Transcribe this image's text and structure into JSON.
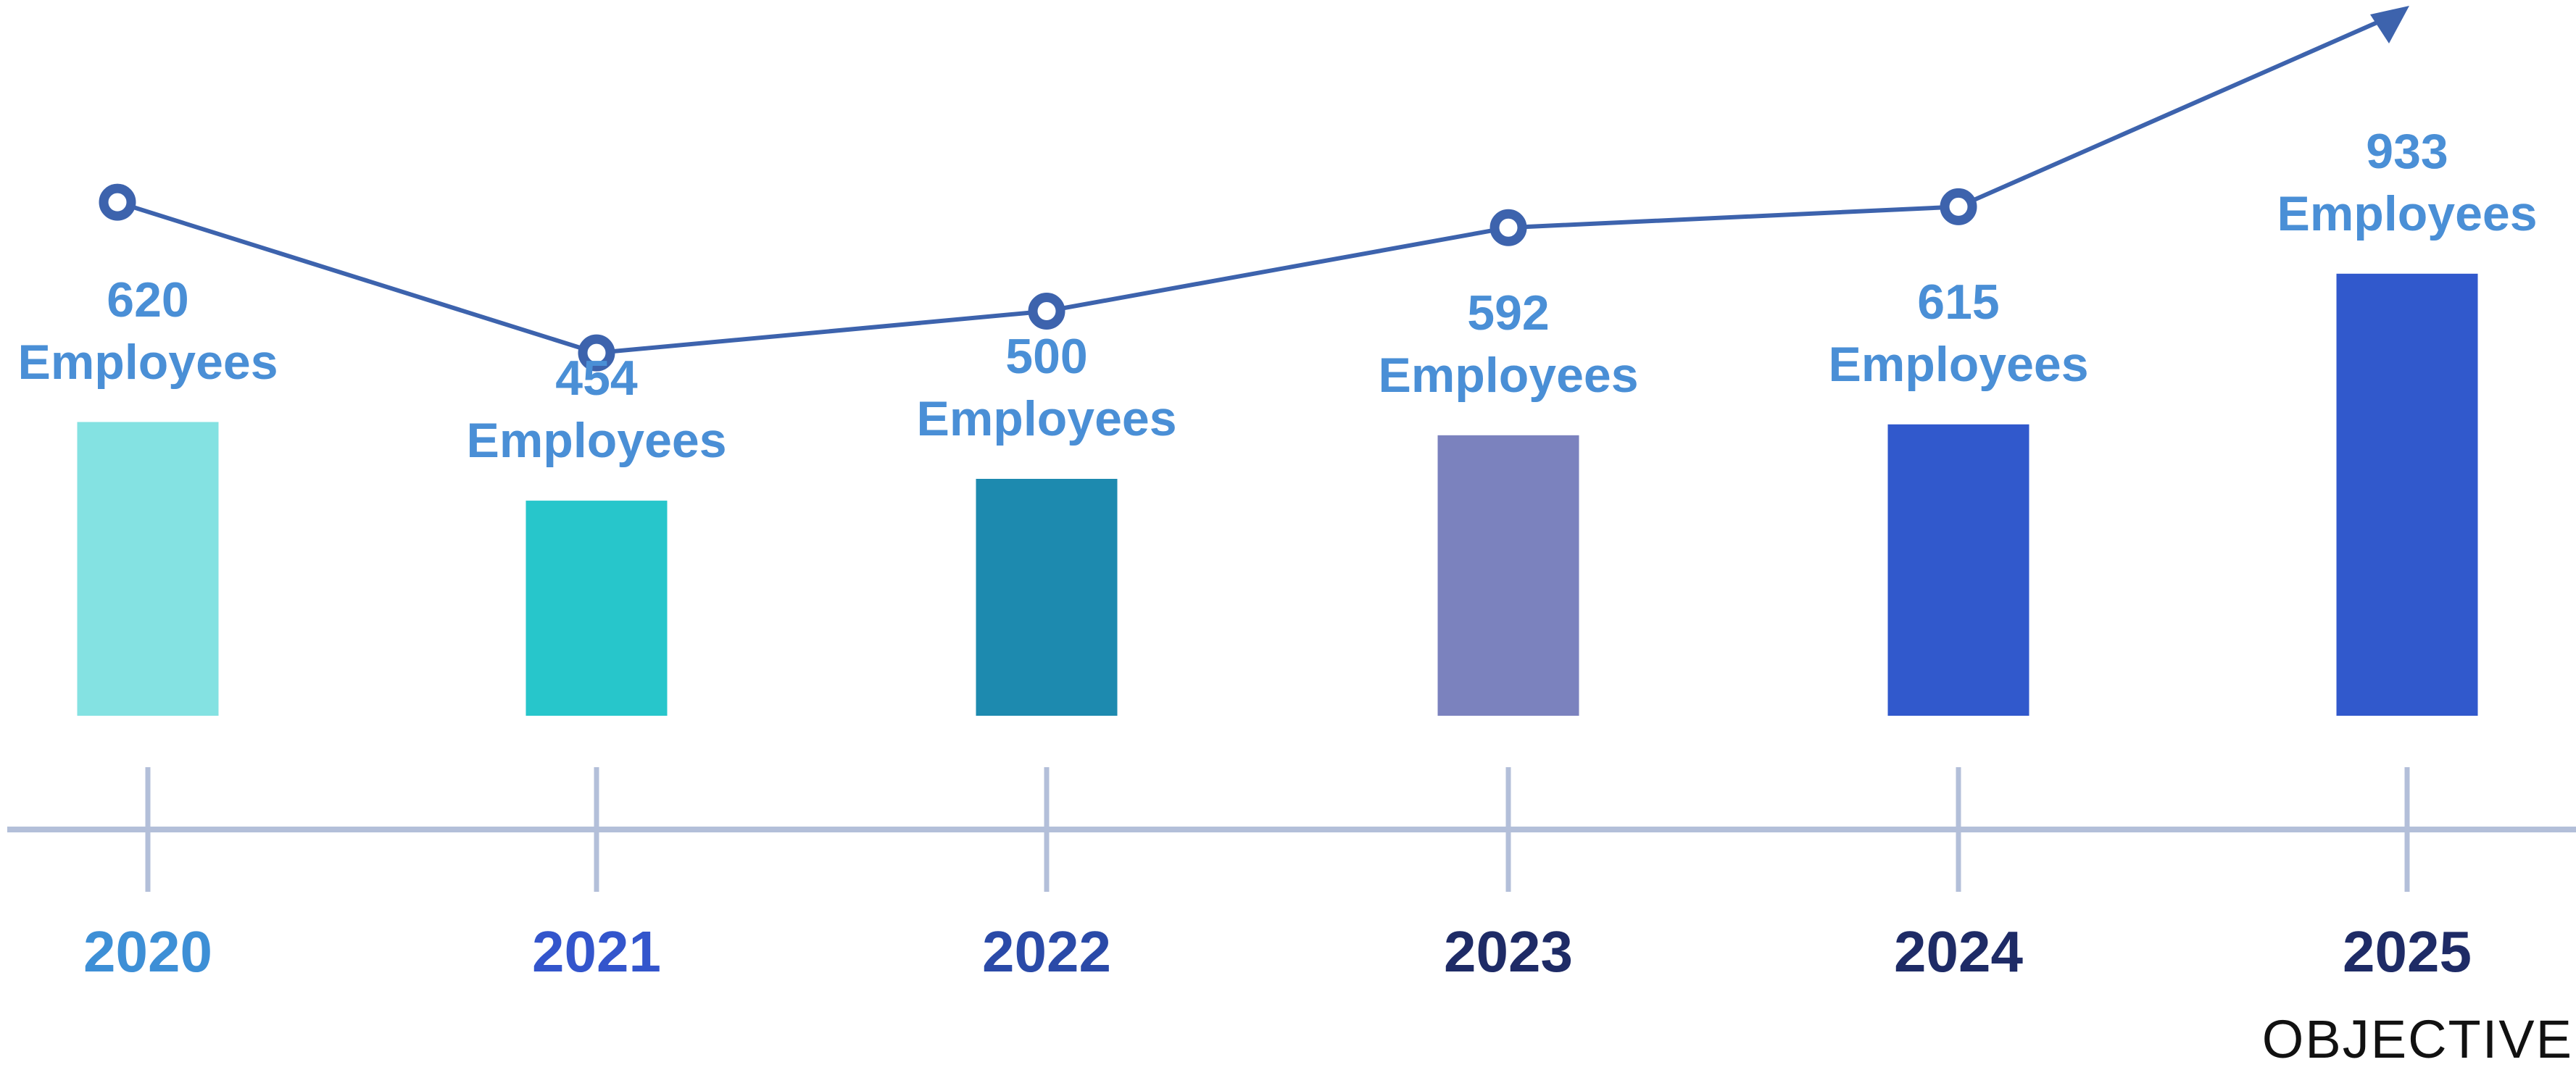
{
  "chart_data": {
    "type": "bar",
    "categories": [
      "2020",
      "2021",
      "2022",
      "2023",
      "2024",
      "2025"
    ],
    "values": [
      620,
      454,
      500,
      592,
      615,
      933
    ],
    "value_labels": [
      "620 Employees",
      "454 Employees",
      "500 Employees",
      "592 Employees",
      "615 Employees",
      "933 Employees"
    ],
    "colors": [
      "#84e2e2",
      "#27c6cb",
      "#1d8aaf",
      "#7b82be",
      "#3159cc",
      "#3159cc"
    ],
    "category_colors": [
      "#3d8fd6",
      "#3355cc",
      "#2a4aa8",
      "#1e2b66",
      "#1e2b66",
      "#1e2b66"
    ],
    "label_color": "#4a8fd6",
    "line_color": "#3d63ad",
    "annotation": "OBJECTIVE"
  }
}
